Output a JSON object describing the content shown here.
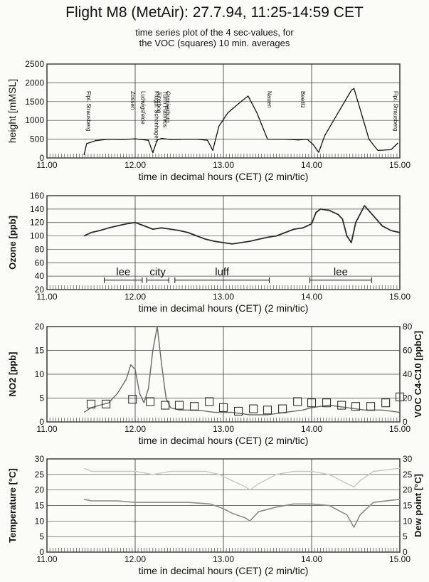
{
  "title": "Flight M8 (MetAir): 27.7.94, 11:25-14:59 CET",
  "subtitle_line1": "time series plot of the 4 sec-values, for",
  "subtitle_line2": "the VOC (squares) 10 min. averages",
  "chart_data": [
    {
      "type": "line",
      "name": "height",
      "ylabel": "height [mMSL]",
      "xlabel": "time in decimal hours (CET) (2 min/tic)",
      "xlim": [
        11.0,
        15.0
      ],
      "ylim": [
        0,
        2500
      ],
      "xticks": [
        "11.00",
        "12.00",
        "13.00",
        "14.00",
        "15.00"
      ],
      "yticks": [
        "0",
        "500",
        "1000",
        "1500",
        "2000",
        "2500"
      ],
      "x": [
        11.42,
        11.45,
        11.55,
        11.7,
        11.85,
        12.0,
        12.15,
        12.2,
        12.25,
        12.3,
        12.4,
        12.55,
        12.7,
        12.82,
        12.88,
        12.95,
        13.05,
        13.2,
        13.28,
        13.38,
        13.5,
        13.7,
        13.85,
        13.95,
        14.02,
        14.08,
        14.15,
        14.3,
        14.45,
        14.48,
        14.55,
        14.65,
        14.75,
        14.9,
        14.98
      ],
      "y": [
        80,
        380,
        460,
        500,
        490,
        510,
        470,
        140,
        480,
        520,
        490,
        500,
        500,
        470,
        200,
        850,
        1200,
        1500,
        1650,
        1200,
        500,
        500,
        480,
        500,
        350,
        150,
        600,
        1200,
        1800,
        1850,
        1300,
        500,
        200,
        220,
        400
      ],
      "annotations": [
        "Flpl. Strausberg",
        "Zossen",
        "Ludwigsfelde",
        "Flugpl. Schönhagen",
        "Jüterbog",
        "Turm Flamnos",
        "Oranienburg",
        "Nauen",
        "Beelitz",
        "Flpl. Strausberg"
      ]
    },
    {
      "type": "line",
      "name": "ozone",
      "ylabel": "Ozone [ppb]",
      "xlabel": "time in decimal hours (CET) (2 min/tic)",
      "xlim": [
        11.0,
        15.0
      ],
      "ylim": [
        20,
        160
      ],
      "xticks": [
        "11.00",
        "12.00",
        "13.00",
        "14.00",
        "15.00"
      ],
      "yticks": [
        "20",
        "40",
        "60",
        "80",
        "100",
        "120",
        "140",
        "160"
      ],
      "x": [
        11.42,
        11.5,
        11.6,
        11.7,
        11.8,
        11.9,
        12.0,
        12.1,
        12.2,
        12.3,
        12.4,
        12.5,
        12.6,
        12.7,
        12.8,
        12.9,
        13.0,
        13.1,
        13.2,
        13.3,
        13.4,
        13.5,
        13.6,
        13.7,
        13.8,
        13.9,
        14.0,
        14.05,
        14.1,
        14.2,
        14.3,
        14.35,
        14.4,
        14.45,
        14.5,
        14.6,
        14.7,
        14.8,
        14.9,
        15.0
      ],
      "y": [
        100,
        105,
        108,
        112,
        115,
        118,
        120,
        115,
        110,
        112,
        110,
        108,
        105,
        100,
        95,
        92,
        90,
        88,
        90,
        92,
        95,
        98,
        100,
        105,
        110,
        112,
        118,
        135,
        140,
        138,
        132,
        125,
        100,
        90,
        120,
        145,
        130,
        115,
        108,
        105
      ],
      "segments": [
        {
          "label": "lee",
          "x0": 11.65,
          "x1": 12.08
        },
        {
          "label": "city",
          "x0": 12.13,
          "x1": 12.38
        },
        {
          "label": "luff",
          "x0": 12.45,
          "x1": 13.52
        },
        {
          "label": "lee",
          "x0": 13.98,
          "x1": 14.68
        }
      ]
    },
    {
      "type": "line",
      "name": "no2_voc",
      "ylabel": "NO2 [ppb]",
      "y2label": "VOC C4-C10 [ppbC]",
      "xlabel": "time in decimal hours (CET) (2 min/tic)",
      "xlim": [
        11.0,
        15.0
      ],
      "ylim": [
        0,
        20
      ],
      "y2lim": [
        0,
        80
      ],
      "xticks": [
        "11.00",
        "12.00",
        "13.00",
        "14.00",
        "15.00"
      ],
      "yticks": [
        "0",
        "5",
        "10",
        "15",
        "20"
      ],
      "y2ticks": [
        "0",
        "20",
        "40",
        "60",
        "80"
      ],
      "x": [
        11.42,
        11.5,
        11.6,
        11.7,
        11.8,
        11.9,
        11.95,
        12.0,
        12.05,
        12.1,
        12.15,
        12.2,
        12.25,
        12.3,
        12.35,
        12.4,
        12.5,
        12.7,
        12.9,
        13.1,
        13.3,
        13.5,
        13.7,
        13.9,
        14.0,
        14.2,
        14.4,
        14.6,
        14.8,
        15.0
      ],
      "y": [
        2,
        3,
        3.5,
        4,
        6,
        9,
        12,
        11,
        6,
        4,
        7,
        15,
        20,
        12,
        5,
        3,
        2.5,
        2.5,
        2,
        2,
        1.5,
        1.5,
        2,
        2.5,
        3,
        3.5,
        3,
        2.5,
        2.5,
        2
      ],
      "voc_x": [
        11.5,
        11.67,
        11.97,
        12.17,
        12.34,
        12.5,
        12.67,
        12.84,
        13.0,
        13.17,
        13.34,
        13.5,
        13.67,
        13.84,
        14.0,
        14.17,
        14.34,
        14.5,
        14.67,
        14.84,
        15.0
      ],
      "voc_y": [
        15,
        15,
        19,
        17,
        14,
        14,
        13,
        17,
        12,
        9,
        11,
        10,
        11,
        17,
        16,
        16,
        14,
        13,
        13,
        16,
        21
      ]
    },
    {
      "type": "line",
      "name": "temperature_dewpoint",
      "ylabel": "Temperature [°C]",
      "y2label": "Dew point [°C]",
      "xlabel": "time in decimal hours (CET) (2 min/tic)",
      "xlim": [
        11.0,
        15.0
      ],
      "ylim": [
        0,
        30
      ],
      "y2lim": [
        0,
        30
      ],
      "xticks": [
        "11.00",
        "12.00",
        "13.00",
        "14.00",
        "15.00"
      ],
      "yticks": [
        "0",
        "5",
        "10",
        "15",
        "20",
        "25",
        "30"
      ],
      "y2ticks": [
        "0",
        "5",
        "10",
        "15",
        "20",
        "25",
        "30"
      ],
      "temp_x": [
        11.42,
        11.5,
        12.0,
        12.2,
        12.4,
        12.8,
        12.95,
        13.1,
        13.25,
        13.3,
        13.4,
        13.6,
        13.8,
        14.0,
        14.2,
        14.4,
        14.48,
        14.55,
        14.7,
        15.0
      ],
      "temp_y": [
        27,
        26,
        26,
        25,
        26,
        26,
        25,
        23,
        21,
        20,
        22,
        25,
        26,
        26,
        25,
        22,
        21,
        23,
        26,
        27
      ],
      "dew_x": [
        11.42,
        11.5,
        11.8,
        12.0,
        12.3,
        12.6,
        12.85,
        13.0,
        13.1,
        13.25,
        13.3,
        13.4,
        13.6,
        13.8,
        14.0,
        14.2,
        14.4,
        14.48,
        14.55,
        14.7,
        15.0
      ],
      "dew_y": [
        17,
        16.5,
        16.5,
        16,
        16,
        16,
        15.5,
        14,
        12.5,
        11,
        10,
        13,
        14.5,
        15.5,
        15.5,
        15,
        12,
        8,
        12,
        16,
        17
      ]
    }
  ]
}
